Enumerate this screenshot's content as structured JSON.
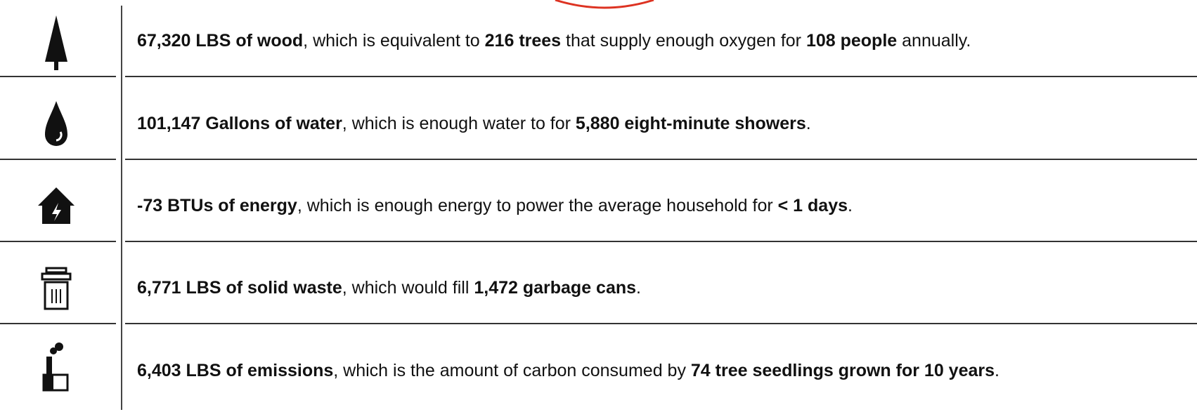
{
  "rows": [
    {
      "parts": [
        {
          "text": "67,320 LBS of wood",
          "bold": true
        },
        {
          "text": ", which is equivalent to ",
          "bold": false
        },
        {
          "text": "216 trees",
          "bold": true
        },
        {
          "text": " that supply enough oxygen for ",
          "bold": false
        },
        {
          "text": "108 people",
          "bold": true
        },
        {
          "text": " annually.",
          "bold": false
        }
      ]
    },
    {
      "parts": [
        {
          "text": "101,147 Gallons of water",
          "bold": true
        },
        {
          "text": ", which is enough water to for ",
          "bold": false
        },
        {
          "text": "5,880 eight-minute showers",
          "bold": true
        },
        {
          "text": ".",
          "bold": false
        }
      ]
    },
    {
      "parts": [
        {
          "text": "-73 BTUs of energy",
          "bold": true
        },
        {
          "text": ", which is enough energy to power the average household for ",
          "bold": false
        },
        {
          "text": "< 1 days",
          "bold": true
        },
        {
          "text": ".",
          "bold": false
        }
      ]
    },
    {
      "parts": [
        {
          "text": "6,771 LBS of solid waste",
          "bold": true
        },
        {
          "text": ", which would fill ",
          "bold": false
        },
        {
          "text": "1,472 garbage cans",
          "bold": true
        },
        {
          "text": ".",
          "bold": false
        }
      ]
    },
    {
      "parts": [
        {
          "text": "6,403 LBS of emissions",
          "bold": true
        },
        {
          "text": ", which is the amount of carbon consumed by ",
          "bold": false
        },
        {
          "text": "74 tree seedlings grown for 10 years",
          "bold": true
        },
        {
          "text": ".",
          "bold": false
        }
      ]
    }
  ]
}
